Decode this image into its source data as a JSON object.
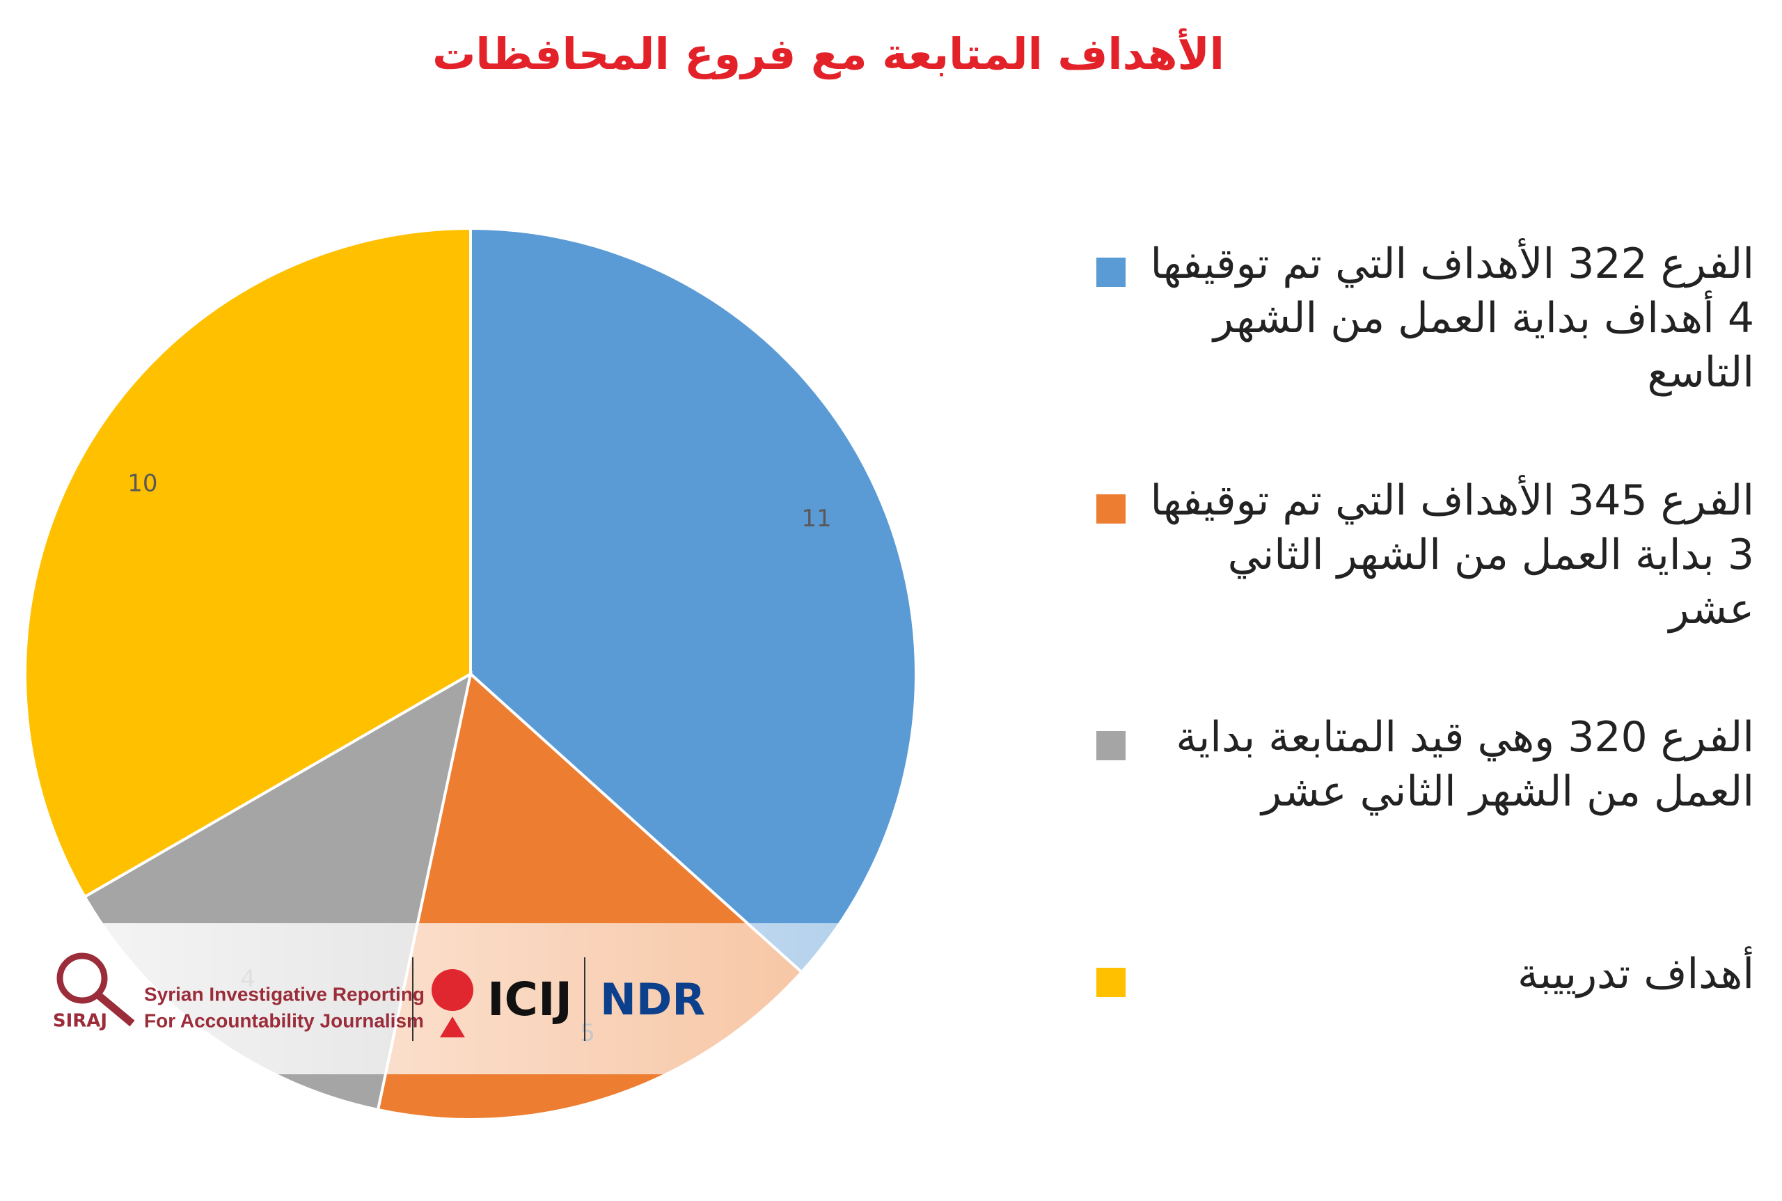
{
  "chart_data": {
    "type": "pie",
    "title": "الأهداف المتابعة مع فروع المحافظات",
    "series": [
      {
        "name": "الفرع 322 الأهداف التي تم توقيفها 4 أهداف بداية العمل من الشهر التاسع",
        "color": "#5b9bd5",
        "values": [
          11
        ]
      },
      {
        "name": "الفرع 345  الأهداف التي تم توقيفها 3 بداية العمل من الشهر الثاني عشر",
        "color": "#ed7d31",
        "values": [
          5
        ]
      },
      {
        "name": "الفرع 320 وهي قيد المتابعة بداية العمل من الشهر الثاني عشر",
        "color": "#a5a5a5",
        "values": [
          4
        ]
      },
      {
        "name": "أهداف تدرييبة",
        "color": "#ffc000",
        "values": [
          10
        ]
      }
    ],
    "legend": "right"
  },
  "logos": {
    "siraj": "SIRAJ",
    "siraj_tagline": [
      "Syrian Investigative Reporting",
      "For Accountability Journalism"
    ],
    "icij": "ICIJ",
    "ndr": "NDR"
  }
}
